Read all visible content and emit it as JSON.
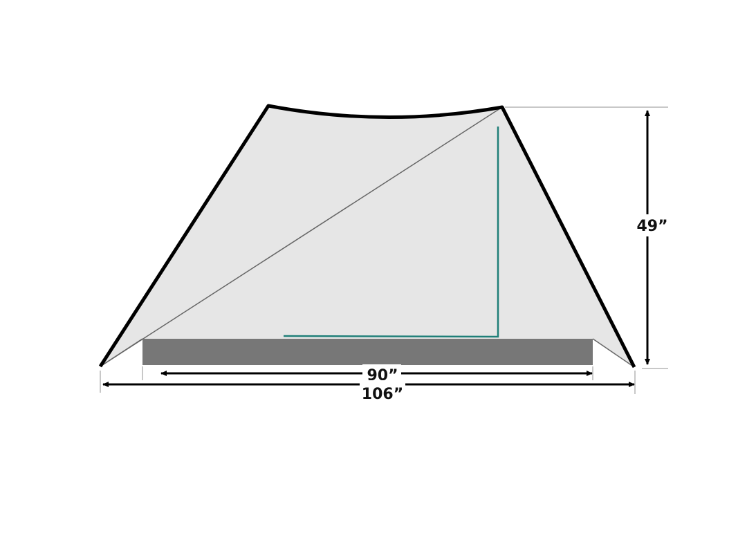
{
  "diagram": {
    "dimensions": {
      "height_label": "49”",
      "floor_length_label": "90”",
      "total_length_label": "106”"
    },
    "colors": {
      "tent_fill": "#e6e6e6",
      "tent_outline": "#000000",
      "floor": "#777777",
      "pole": "#1f7f78",
      "guide": "#c8c8c8"
    }
  }
}
